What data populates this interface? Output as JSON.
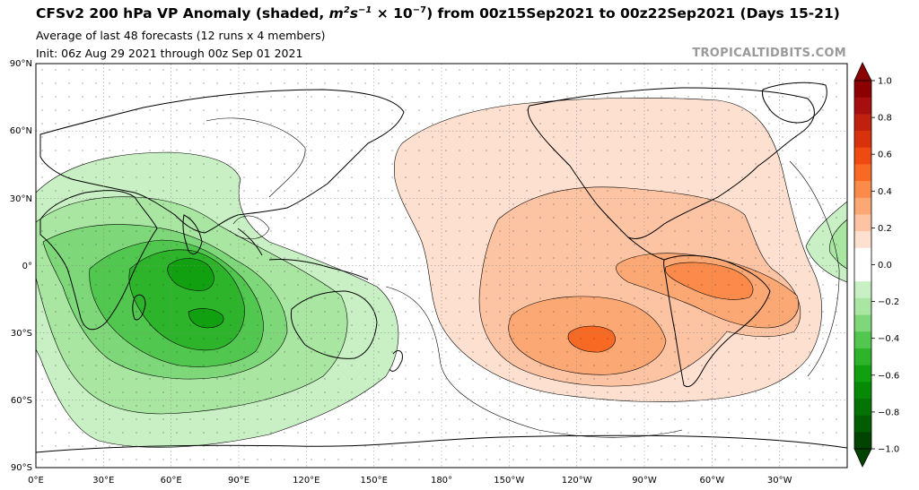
{
  "header": {
    "title_main": "CFSv2 200 hPa VP Anomaly (shaded, ",
    "title_units_base": "m",
    "title_units_sup1": "2",
    "title_units_s": "s",
    "title_units_sup2": "−1",
    "title_units_times": " × 10",
    "title_units_sup3": "−7",
    "title_rest": ") from 00z15Sep2021 to 00z22Sep2021 (Days 15-21)",
    "subtitle1": "Average of last 48 forecasts (12 runs x 4 members)",
    "subtitle2": "Init: 06z Aug 29 2021 through 00z Sep 01 2021",
    "watermark": "TROPICALTIDBITS.COM"
  },
  "map": {
    "lat_labels": [
      "90°N",
      "60°N",
      "30°N",
      "0°",
      "30°S",
      "60°S",
      "90°S"
    ],
    "lon_labels": [
      "0°E",
      "30°E",
      "60°E",
      "90°E",
      "120°E",
      "150°E",
      "180°",
      "150°W",
      "120°W",
      "90°W",
      "60°W",
      "30°W"
    ]
  },
  "colorbar": {
    "tick_labels": [
      "1.0",
      "0.8",
      "0.6",
      "0.4",
      "0.2",
      "0.0",
      "−0.2",
      "−0.4",
      "−0.6",
      "−0.8",
      "−1.0"
    ],
    "colors": [
      "#8b0000",
      "#a50f0f",
      "#c0200e",
      "#d8320c",
      "#ee4a12",
      "#f86a24",
      "#fc8a4a",
      "#fca874",
      "#fdc4a4",
      "#fde0d0",
      "#ffffff",
      "#ffffff",
      "#c8f0c4",
      "#a8e6a2",
      "#7ed87a",
      "#52c74f",
      "#2db42a",
      "#10a010",
      "#068a06",
      "#037303",
      "#025c02",
      "#014401"
    ]
  },
  "chart_data": {
    "type": "map",
    "variable": "200 hPa velocity potential anomaly",
    "units": "m2 s-1 x 1e-7",
    "color_scale": {
      "min": -1.0,
      "max": 1.0,
      "step": 0.1
    },
    "features": [
      {
        "name": "negative anomaly center (convergence-green) Indian Ocean",
        "approx_center": "70E 15S",
        "min_value": -0.7
      },
      {
        "name": "positive anomaly center eastern Pacific",
        "approx_center": "120W 30S",
        "max_value": 0.5
      },
      {
        "name": "positive anomaly South America/Atlantic",
        "approx_center": "60W 15S",
        "max_value": 0.4
      }
    ]
  }
}
